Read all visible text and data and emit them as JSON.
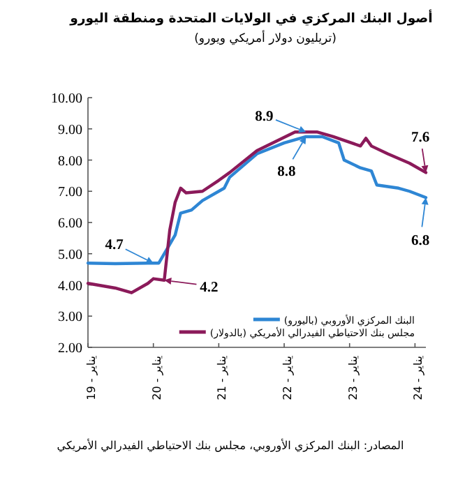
{
  "chart_data": {
    "type": "line",
    "title": "أصول البنك المركزي في الولايات المتحدة ومنطقة اليورو",
    "subtitle": "(تريليون دولار أمريكي ويورو)",
    "series": [
      {
        "name": "البنك المركزي الأوروبي (باليورو)",
        "color": "#2e86d4",
        "x": [
          "2019-01",
          "2019-06",
          "2019-12",
          "2020-02",
          "2020-04",
          "2020-05",
          "2020-06",
          "2020-08",
          "2020-10",
          "2021-02",
          "2021-03",
          "2021-08",
          "2022-01",
          "2022-05",
          "2022-08",
          "2022-11",
          "2022-12",
          "2023-03",
          "2023-05",
          "2023-06",
          "2023-10",
          "2023-12",
          "2024-03"
        ],
        "values": [
          4.7,
          4.68,
          4.7,
          4.7,
          5.3,
          5.6,
          6.3,
          6.4,
          6.7,
          7.1,
          7.45,
          8.2,
          8.55,
          8.75,
          8.75,
          8.55,
          8.0,
          7.75,
          7.65,
          7.2,
          7.1,
          7.0,
          6.8
        ]
      },
      {
        "name": "مجلس بنك الاحتياطي الفيدرالي الأمريكي (بالدولار)",
        "color": "#8b1a5a",
        "x": [
          "2019-01",
          "2019-06",
          "2019-09",
          "2019-12",
          "2020-01",
          "2020-03",
          "2020-04",
          "2020-05",
          "2020-06",
          "2020-07",
          "2020-10",
          "2021-01",
          "2021-03",
          "2021-08",
          "2022-03",
          "2022-07",
          "2022-10",
          "2023-03",
          "2023-04",
          "2023-05",
          "2023-08",
          "2023-12",
          "2024-03"
        ],
        "values": [
          4.05,
          3.9,
          3.75,
          4.05,
          4.2,
          4.15,
          5.75,
          6.65,
          7.1,
          6.95,
          7.0,
          7.35,
          7.6,
          8.3,
          8.9,
          8.9,
          8.75,
          8.45,
          8.7,
          8.45,
          8.2,
          7.9,
          7.6
        ]
      }
    ],
    "xlim": [
      "2019-01",
      "2024-03"
    ],
    "xticks": [
      {
        "value": "2019-01",
        "label": "يناير - 19"
      },
      {
        "value": "2020-01",
        "label": "يناير - 20"
      },
      {
        "value": "2021-01",
        "label": "يناير - 21"
      },
      {
        "value": "2022-01",
        "label": "يناير - 22"
      },
      {
        "value": "2023-01",
        "label": "يناير - 23"
      },
      {
        "value": "2024-01",
        "label": "يناير - 24"
      }
    ],
    "ylim": [
      2,
      10
    ],
    "yticks": [
      {
        "value": 2,
        "label": "2.00"
      },
      {
        "value": 3,
        "label": "3.00"
      },
      {
        "value": 4,
        "label": "4.00"
      },
      {
        "value": 5,
        "label": "5.00"
      },
      {
        "value": 6,
        "label": "6.00"
      },
      {
        "value": 7,
        "label": "7.00"
      },
      {
        "value": 8,
        "label": "8.00"
      },
      {
        "value": 9,
        "label": "9.00"
      },
      {
        "value": 10,
        "label": "10.00"
      }
    ],
    "legend": "bottom right",
    "annotations": [
      {
        "text": "4.7",
        "x": "2020-01",
        "y": 4.7
      },
      {
        "text": "4.2",
        "x": "2020-03",
        "y": 4.15
      },
      {
        "text": "8.9",
        "x": "2022-05",
        "y": 8.9
      },
      {
        "text": "8.8",
        "x": "2022-05",
        "y": 8.75
      },
      {
        "text": "7.6",
        "x": "2024-03",
        "y": 7.6
      },
      {
        "text": "6.8",
        "x": "2024-03",
        "y": 6.8
      },
      "المصادر: البنك المركزي الأوروبي، مجلس بنك الاحتياطي الفيدرالي الأمريكي"
    ]
  }
}
